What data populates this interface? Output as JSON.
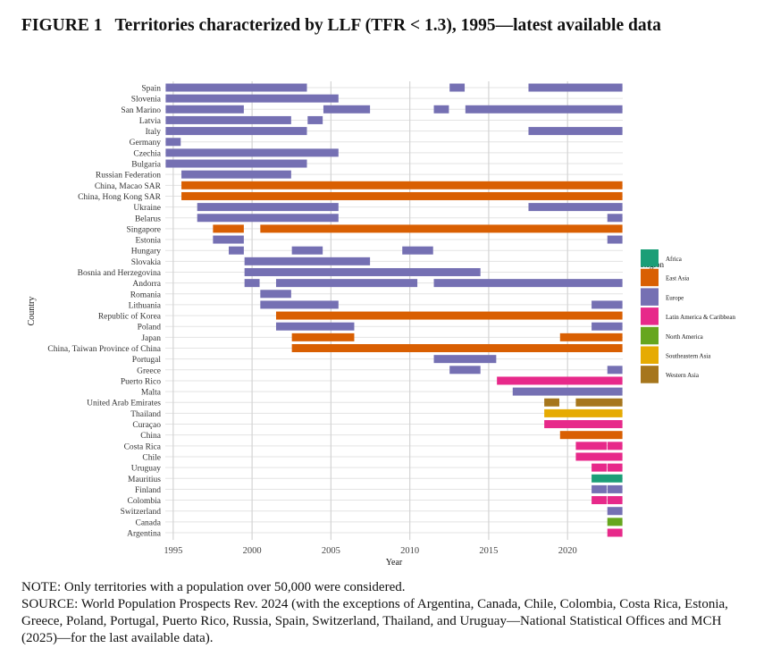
{
  "title": {
    "figure": "FIGURE 1",
    "text": "Territories characterized by LLF (TFR < 1.3), 1995—latest available data"
  },
  "notes": {
    "note": "NOTE: Only territories with a population over 50,000 were considered.",
    "source": "SOURCE: World Population Prospects Rev. 2024 (with the exceptions of Argentina, Canada, Chile, Colombia, Costa Rica, Estonia, Greece, Poland, Portugal, Puerto Rico, Russia, Spain, Switzerland, Thailand, and Uruguay—National Statistical Offices and MCH (2025)—for the last available data)."
  },
  "chart_data": {
    "type": "bar",
    "subtype": "timeline",
    "xlabel": "Year",
    "ylabel": "Country",
    "xlim": [
      1994.5,
      2023.5
    ],
    "xticks": [
      1995,
      2000,
      2005,
      2010,
      2015,
      2020
    ],
    "grid": true,
    "legend": {
      "title": "Region",
      "placement": "right",
      "entries": [
        {
          "name": "Africa",
          "color": "#1b9e77"
        },
        {
          "name": "East Asia",
          "color": "#d95f02"
        },
        {
          "name": "Europe",
          "color": "#7570b3"
        },
        {
          "name": "Latin America & Caribbean",
          "color": "#e7298a"
        },
        {
          "name": "North America",
          "color": "#66a61e"
        },
        {
          "name": "Southeastern Asia",
          "color": "#e6ab02"
        },
        {
          "name": "Western Asia",
          "color": "#a6761d"
        }
      ]
    },
    "rows": [
      {
        "country": "Spain",
        "region": "Europe",
        "periods": [
          [
            1995,
            2003
          ],
          [
            2013,
            2013
          ],
          [
            2018,
            2023
          ]
        ]
      },
      {
        "country": "Slovenia",
        "region": "Europe",
        "periods": [
          [
            1995,
            2005
          ]
        ]
      },
      {
        "country": "San Marino",
        "region": "Europe",
        "periods": [
          [
            1995,
            1999
          ],
          [
            2005,
            2007
          ],
          [
            2012,
            2012
          ],
          [
            2014,
            2023
          ]
        ]
      },
      {
        "country": "Latvia",
        "region": "Europe",
        "periods": [
          [
            1995,
            2002
          ],
          [
            2004,
            2004
          ]
        ]
      },
      {
        "country": "Italy",
        "region": "Europe",
        "periods": [
          [
            1995,
            2003
          ],
          [
            2018,
            2023
          ]
        ]
      },
      {
        "country": "Germany",
        "region": "Europe",
        "periods": [
          [
            1995,
            1995
          ]
        ]
      },
      {
        "country": "Czechia",
        "region": "Europe",
        "periods": [
          [
            1995,
            2005
          ]
        ]
      },
      {
        "country": "Bulgaria",
        "region": "Europe",
        "periods": [
          [
            1995,
            2003
          ]
        ]
      },
      {
        "country": "Russian Federation",
        "region": "Europe",
        "periods": [
          [
            1996,
            2002
          ]
        ]
      },
      {
        "country": "China, Macao SAR",
        "region": "East Asia",
        "periods": [
          [
            1996,
            2023
          ]
        ]
      },
      {
        "country": "China, Hong Kong SAR",
        "region": "East Asia",
        "periods": [
          [
            1996,
            2023
          ]
        ]
      },
      {
        "country": "Ukraine",
        "region": "Europe",
        "periods": [
          [
            1997,
            2005
          ],
          [
            2018,
            2023
          ]
        ]
      },
      {
        "country": "Belarus",
        "region": "Europe",
        "periods": [
          [
            1997,
            2005
          ],
          [
            2023,
            2023
          ]
        ]
      },
      {
        "country": "Singapore",
        "region": "East Asia",
        "periods": [
          [
            1998,
            1999
          ],
          [
            2001,
            2023
          ]
        ]
      },
      {
        "country": "Estonia",
        "region": "Europe",
        "periods": [
          [
            1998,
            1999
          ],
          [
            2023,
            2023
          ]
        ]
      },
      {
        "country": "Hungary",
        "region": "Europe",
        "periods": [
          [
            1999,
            1999
          ],
          [
            2003,
            2004
          ],
          [
            2010,
            2011
          ]
        ]
      },
      {
        "country": "Slovakia",
        "region": "Europe",
        "periods": [
          [
            2000,
            2007
          ]
        ]
      },
      {
        "country": "Bosnia and Herzegovina",
        "region": "Europe",
        "periods": [
          [
            2000,
            2014
          ]
        ]
      },
      {
        "country": "Andorra",
        "region": "Europe",
        "periods": [
          [
            2000,
            2000
          ],
          [
            2002,
            2010
          ],
          [
            2012,
            2023
          ]
        ]
      },
      {
        "country": "Romania",
        "region": "Europe",
        "periods": [
          [
            2001,
            2002
          ]
        ]
      },
      {
        "country": "Lithuania",
        "region": "Europe",
        "periods": [
          [
            2001,
            2005
          ],
          [
            2022,
            2023
          ]
        ]
      },
      {
        "country": "Republic of Korea",
        "region": "East Asia",
        "periods": [
          [
            2002,
            2023
          ]
        ]
      },
      {
        "country": "Poland",
        "region": "Europe",
        "periods": [
          [
            2002,
            2006
          ],
          [
            2022,
            2023
          ]
        ]
      },
      {
        "country": "Japan",
        "region": "East Asia",
        "periods": [
          [
            2003,
            2006
          ],
          [
            2020,
            2023
          ]
        ]
      },
      {
        "country": "China, Taiwan Province of China",
        "region": "East Asia",
        "periods": [
          [
            2003,
            2023
          ]
        ]
      },
      {
        "country": "Portugal",
        "region": "Europe",
        "periods": [
          [
            2012,
            2015
          ]
        ]
      },
      {
        "country": "Greece",
        "region": "Europe",
        "periods": [
          [
            2013,
            2014
          ],
          [
            2023,
            2023
          ]
        ]
      },
      {
        "country": "Puerto Rico",
        "region": "Latin America & Caribbean",
        "periods": [
          [
            2016,
            2023
          ]
        ]
      },
      {
        "country": "Malta",
        "region": "Europe",
        "periods": [
          [
            2017,
            2023
          ]
        ]
      },
      {
        "country": "United Arab Emirates",
        "region": "Western Asia",
        "periods": [
          [
            2019,
            2019
          ],
          [
            2021,
            2023
          ]
        ]
      },
      {
        "country": "Thailand",
        "region": "Southeastern Asia",
        "periods": [
          [
            2019,
            2023
          ]
        ]
      },
      {
        "country": "Curaçao",
        "region": "Latin America & Caribbean",
        "periods": [
          [
            2019,
            2023
          ]
        ]
      },
      {
        "country": "China",
        "region": "East Asia",
        "periods": [
          [
            2020,
            2023
          ]
        ]
      },
      {
        "country": "Costa Rica",
        "region": "Latin America & Caribbean",
        "periods": [
          [
            2021,
            2022
          ],
          [
            2023,
            2023
          ]
        ]
      },
      {
        "country": "Chile",
        "region": "Latin America & Caribbean",
        "periods": [
          [
            2021,
            2023
          ]
        ]
      },
      {
        "country": "Uruguay",
        "region": "Latin America & Caribbean",
        "periods": [
          [
            2022,
            2022
          ],
          [
            2023,
            2023
          ]
        ]
      },
      {
        "country": "Mauritius",
        "region": "Africa",
        "periods": [
          [
            2022,
            2023
          ]
        ]
      },
      {
        "country": "Finland",
        "region": "Europe",
        "periods": [
          [
            2022,
            2022
          ],
          [
            2023,
            2023
          ]
        ]
      },
      {
        "country": "Colombia",
        "region": "Latin America & Caribbean",
        "periods": [
          [
            2022,
            2022
          ],
          [
            2023,
            2023
          ]
        ]
      },
      {
        "country": "Switzerland",
        "region": "Europe",
        "periods": [
          [
            2023,
            2023
          ]
        ]
      },
      {
        "country": "Canada",
        "region": "North America",
        "periods": [
          [
            2023,
            2023
          ]
        ]
      },
      {
        "country": "Argentina",
        "region": "Latin America & Caribbean",
        "periods": [
          [
            2023,
            2023
          ]
        ]
      }
    ]
  }
}
